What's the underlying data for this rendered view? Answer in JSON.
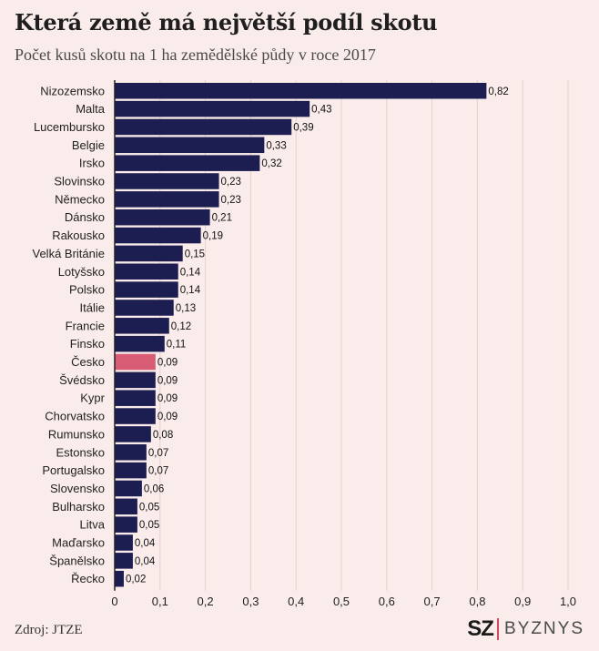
{
  "header": {
    "title": "Která země má největší podíl skotu",
    "subtitle": "Počet kusů skotu na 1 ha zemědělské půdy v roce 2017"
  },
  "footer": {
    "source": "Zdroj: JTZE",
    "brand_short": "SZ",
    "brand_name": "BYZNYS"
  },
  "colors": {
    "bar": "#1c1d50",
    "highlight": "#d85c73",
    "axis": "#222222",
    "grid": "#e6cfcc",
    "background": "#f9ecea"
  },
  "chart_data": {
    "type": "bar",
    "orientation": "horizontal",
    "title": "Která země má největší podíl skotu",
    "subtitle": "Počet kusů skotu na 1 ha zemědělské půdy v roce 2017",
    "categories": [
      "Nizozemsko",
      "Malta",
      "Lucembursko",
      "Belgie",
      "Irsko",
      "Slovinsko",
      "Německo",
      "Dánsko",
      "Rakousko",
      "Velká Británie",
      "Lotyšsko",
      "Polsko",
      "Itálie",
      "Francie",
      "Finsko",
      "Česko",
      "Švédsko",
      "Kypr",
      "Chorvatsko",
      "Rumunsko",
      "Estonsko",
      "Portugalsko",
      "Slovensko",
      "Bulharsko",
      "Litva",
      "Maďarsko",
      "Španělsko",
      "Řecko"
    ],
    "values": [
      0.82,
      0.43,
      0.39,
      0.33,
      0.32,
      0.23,
      0.23,
      0.21,
      0.19,
      0.15,
      0.14,
      0.14,
      0.13,
      0.12,
      0.11,
      0.09,
      0.09,
      0.09,
      0.09,
      0.08,
      0.07,
      0.07,
      0.06,
      0.05,
      0.05,
      0.04,
      0.04,
      0.02
    ],
    "value_labels": [
      "0,82",
      "0,43",
      "0,39",
      "0,33",
      "0,32",
      "0,23",
      "0,23",
      "0,21",
      "0,19",
      "0,15",
      "0,14",
      "0,14",
      "0,13",
      "0,12",
      "0,11",
      "0,09",
      "0,09",
      "0,09",
      "0,09",
      "0,08",
      "0,07",
      "0,07",
      "0,06",
      "0,05",
      "0,05",
      "0,04",
      "0,04",
      "0,02"
    ],
    "highlight": "Česko",
    "xlim": [
      0,
      1.0
    ],
    "xticks": [
      0,
      0.1,
      0.2,
      0.3,
      0.4,
      0.5,
      0.6,
      0.7,
      0.8,
      0.9,
      1.0
    ],
    "xtick_labels": [
      "0",
      "0,1",
      "0,2",
      "0,3",
      "0,4",
      "0,5",
      "0,6",
      "0,7",
      "0,8",
      "0,9",
      "1,0"
    ],
    "grid": true,
    "xlabel": "",
    "ylabel": ""
  }
}
